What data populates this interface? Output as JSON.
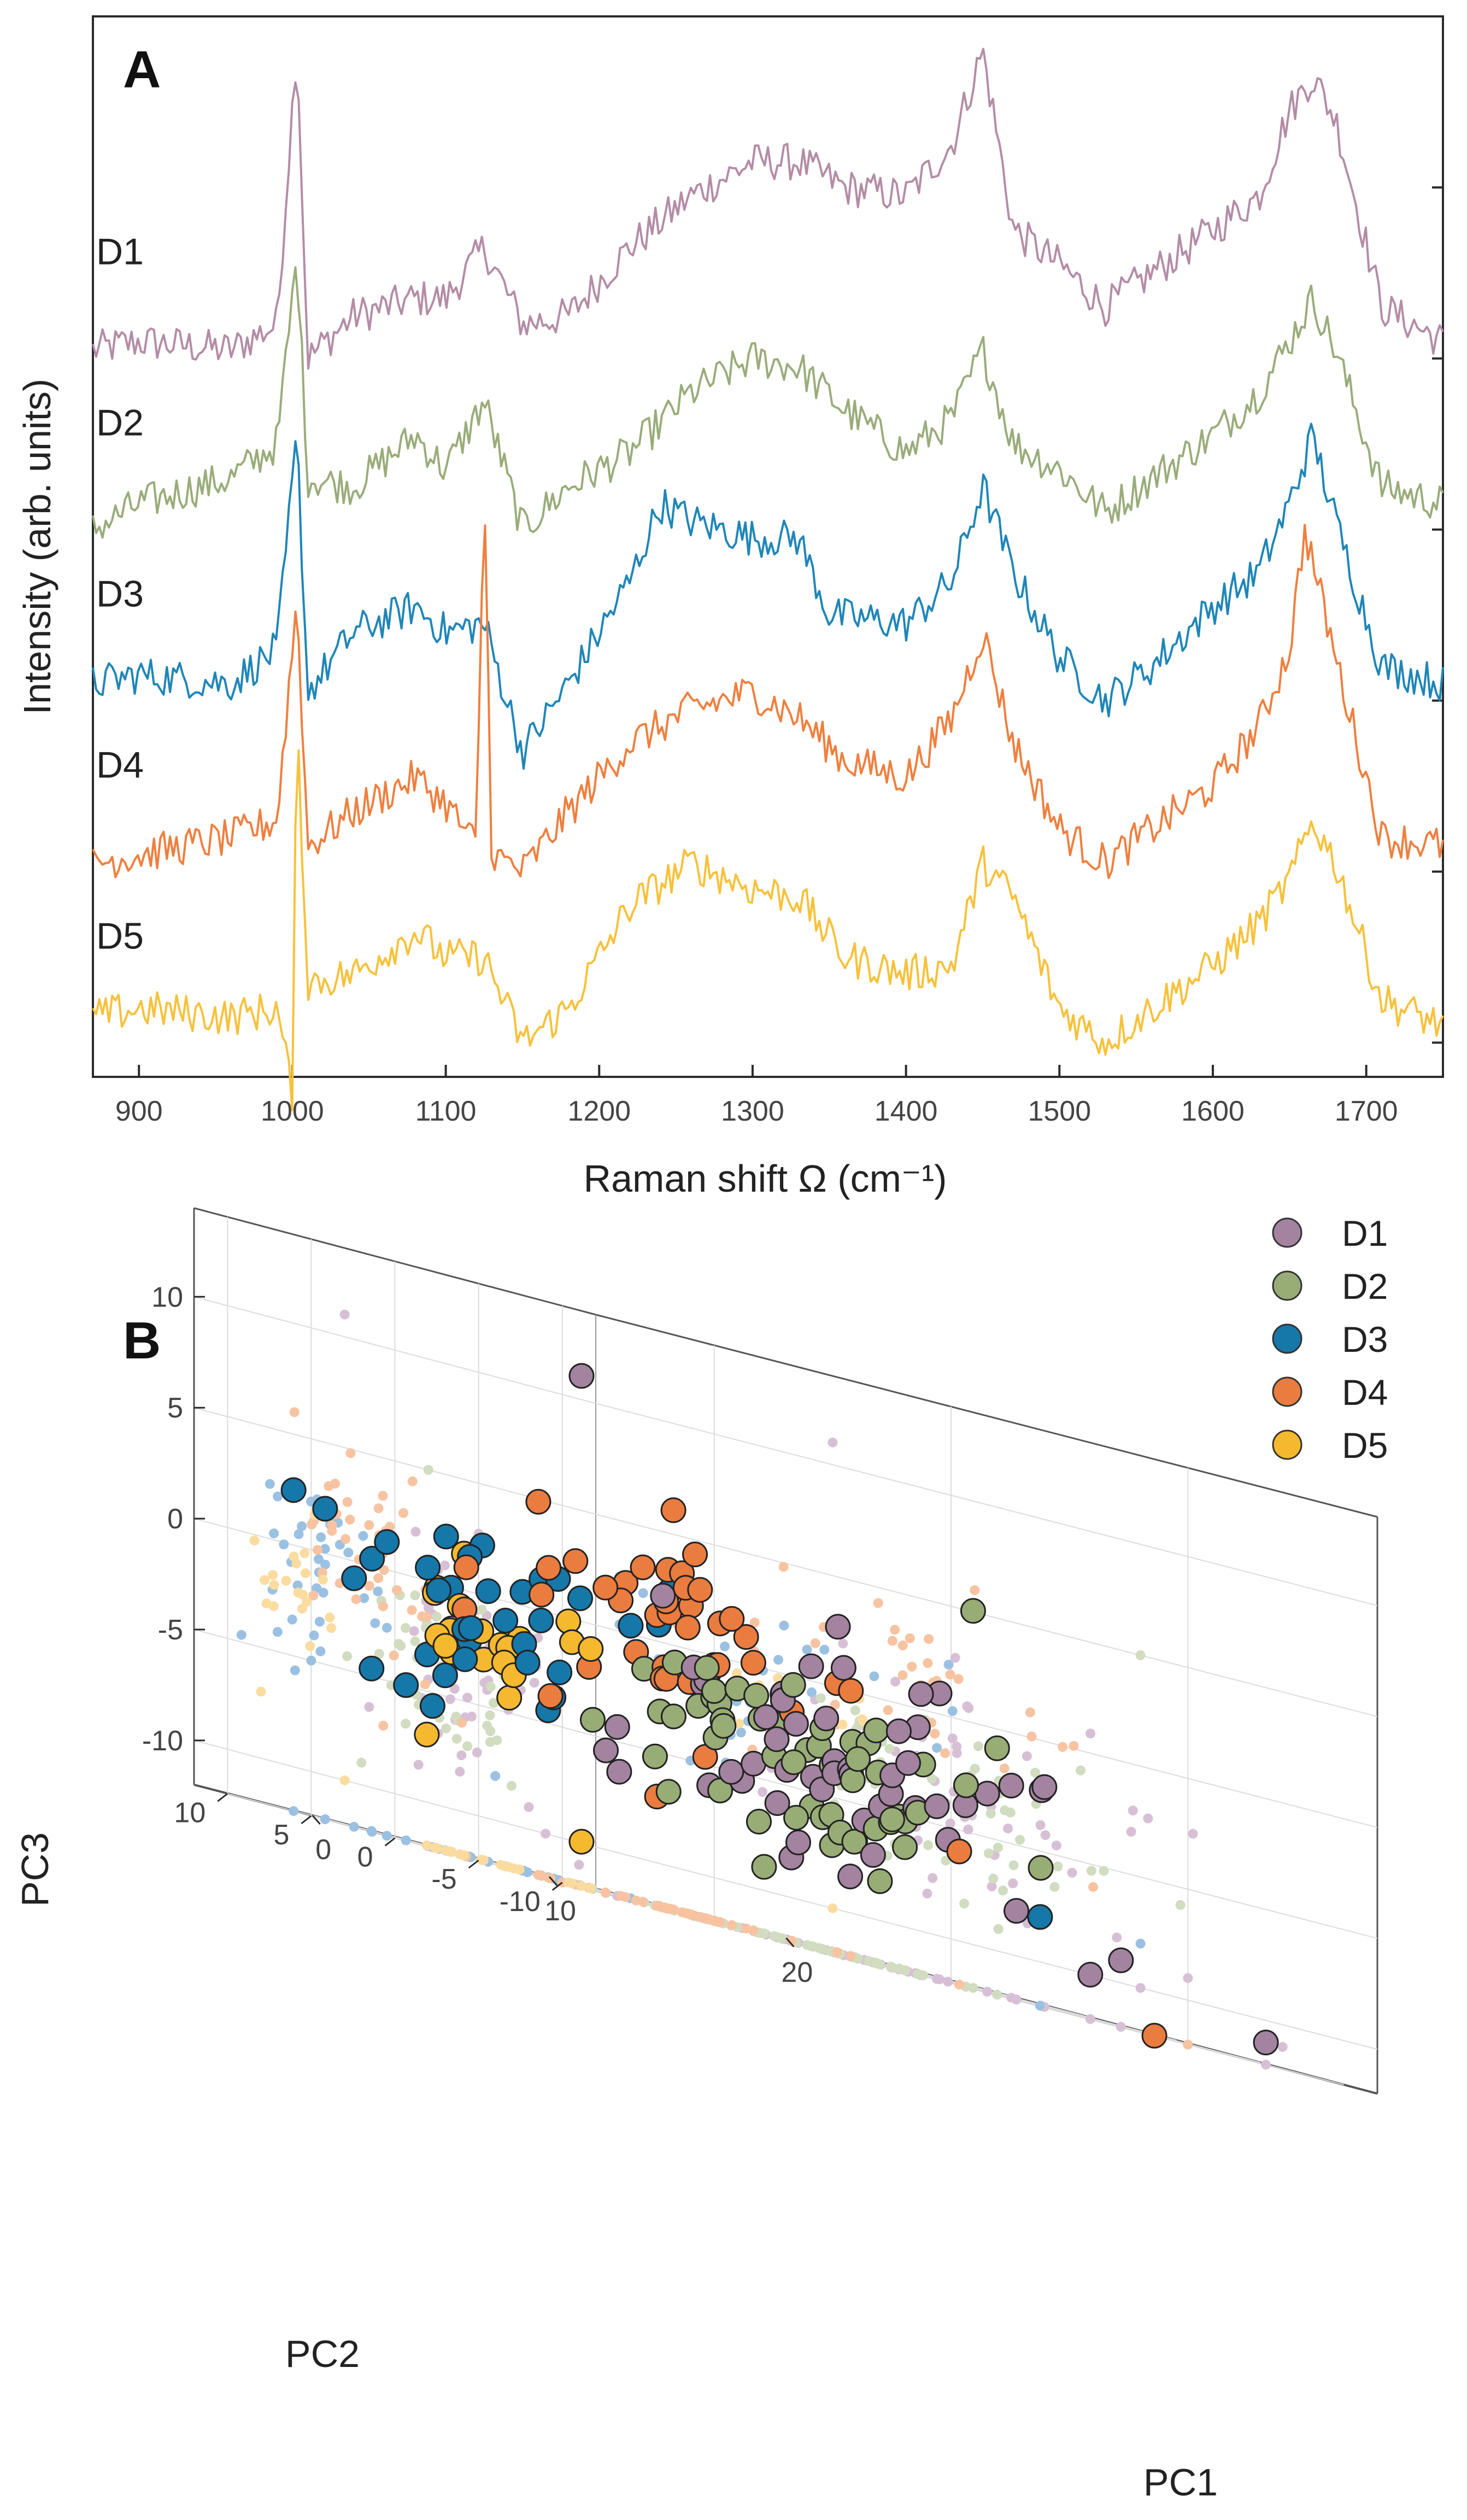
{
  "chart_data": [
    {
      "panel": "A",
      "type": "line",
      "xlabel": "Raman shift Ω (cm⁻¹)",
      "ylabel": "Intensity (arb. units)",
      "xlim": [
        870,
        1750
      ],
      "ylim": [
        0,
        6.2
      ],
      "xticks": [
        900,
        1000,
        1100,
        1200,
        1300,
        1400,
        1500,
        1600,
        1700
      ],
      "stacked_offset": 1.0,
      "grid": false,
      "peaks_cm1": [
        1003,
        1125,
        1250,
        1320,
        1450,
        1660
      ],
      "series": [
        {
          "name": "D1",
          "color": "#b48ca6",
          "offset": 4.2,
          "x": [
            870,
            900,
            960,
            990,
            1003,
            1010,
            1040,
            1080,
            1100,
            1125,
            1150,
            1180,
            1220,
            1260,
            1300,
            1330,
            1360,
            1400,
            1430,
            1450,
            1470,
            1500,
            1530,
            1560,
            1600,
            1630,
            1650,
            1665,
            1680,
            1710,
            1750
          ],
          "y": [
            0.05,
            0.1,
            0.05,
            0.2,
            1.85,
            0.0,
            0.25,
            0.35,
            0.35,
            0.65,
            0.2,
            0.25,
            0.65,
            0.95,
            1.15,
            1.15,
            1.0,
            0.95,
            1.25,
            1.8,
            0.75,
            0.55,
            0.3,
            0.5,
            0.75,
            0.95,
            1.45,
            1.65,
            1.4,
            0.3,
            0.1
          ]
        },
        {
          "name": "D2",
          "color": "#9aac7a",
          "offset": 3.2,
          "x": [
            870,
            900,
            960,
            990,
            1003,
            1010,
            1040,
            1080,
            1100,
            1125,
            1150,
            1180,
            1220,
            1260,
            1300,
            1330,
            1360,
            1400,
            1430,
            1450,
            1470,
            1500,
            1530,
            1560,
            1600,
            1630,
            1650,
            1665,
            1680,
            1710,
            1750
          ],
          "y": [
            0.0,
            0.15,
            0.3,
            0.5,
            1.6,
            0.3,
            0.25,
            0.55,
            0.35,
            0.75,
            0.0,
            0.25,
            0.45,
            0.8,
            1.0,
            0.95,
            0.7,
            0.45,
            0.65,
            1.05,
            0.5,
            0.35,
            0.1,
            0.3,
            0.55,
            0.8,
            1.1,
            1.35,
            1.05,
            0.25,
            0.15
          ]
        },
        {
          "name": "D3",
          "color": "#1f86b8",
          "offset": 2.2,
          "x": [
            870,
            900,
            960,
            990,
            1003,
            1010,
            1040,
            1080,
            1100,
            1125,
            1150,
            1180,
            1220,
            1240,
            1260,
            1300,
            1330,
            1350,
            1400,
            1430,
            1450,
            1470,
            1500,
            1530,
            1560,
            1600,
            1630,
            1650,
            1665,
            1680,
            1710,
            1750
          ],
          "y": [
            0.1,
            0.15,
            0.1,
            0.3,
            1.55,
            0.05,
            0.4,
            0.55,
            0.4,
            0.45,
            -0.3,
            0.1,
            0.7,
            1.15,
            1.05,
            0.95,
            0.95,
            0.5,
            0.45,
            0.7,
            1.25,
            0.75,
            0.25,
            0.0,
            0.2,
            0.55,
            0.75,
            1.15,
            1.55,
            1.05,
            0.2,
            0.1
          ]
        },
        {
          "name": "D4",
          "color": "#ef7f3e",
          "offset": 1.2,
          "x": [
            870,
            900,
            960,
            990,
            1003,
            1010,
            1040,
            1080,
            1100,
            1120,
            1125,
            1130,
            1150,
            1180,
            1220,
            1260,
            1300,
            1330,
            1360,
            1400,
            1430,
            1450,
            1470,
            1500,
            1530,
            1560,
            1600,
            1630,
            1650,
            1660,
            1680,
            1710,
            1750
          ],
          "y": [
            0.05,
            0.1,
            0.2,
            0.3,
            1.6,
            0.15,
            0.35,
            0.55,
            0.4,
            0.15,
            2.3,
            0.1,
            0.0,
            0.35,
            0.75,
            0.95,
            1.05,
            0.9,
            0.65,
            0.55,
            0.9,
            1.4,
            0.75,
            0.25,
            0.05,
            0.25,
            0.5,
            0.85,
            1.3,
            2.0,
            1.25,
            0.2,
            0.15
          ]
        },
        {
          "name": "D5",
          "color": "#f8c13a",
          "offset": 0.2,
          "x": [
            870,
            900,
            960,
            990,
            1000,
            1003,
            1010,
            1040,
            1080,
            1100,
            1125,
            1150,
            1180,
            1220,
            1260,
            1300,
            1330,
            1360,
            1400,
            1430,
            1450,
            1470,
            1500,
            1530,
            1560,
            1600,
            1630,
            1650,
            1665,
            1680,
            1710,
            1750
          ],
          "y": [
            0.15,
            0.2,
            0.15,
            0.2,
            -0.3,
            1.9,
            0.35,
            0.4,
            0.65,
            0.5,
            0.5,
            0.0,
            0.2,
            0.8,
            1.05,
            0.9,
            0.85,
            0.5,
            0.4,
            0.45,
            1.05,
            0.85,
            0.2,
            0.0,
            0.2,
            0.45,
            0.7,
            0.95,
            1.3,
            1.05,
            0.25,
            0.1
          ]
        }
      ],
      "series_labels": [
        "D1",
        "D2",
        "D3",
        "D4",
        "D5"
      ]
    },
    {
      "panel": "B",
      "type": "scatter3d",
      "xlabel": "PC1",
      "ylabel": "PC2",
      "zlabel": "PC3",
      "xlim": [
        -5,
        28
      ],
      "ylim": [
        -12,
        12
      ],
      "zlim": [
        -12,
        14
      ],
      "xticks": [
        0,
        10,
        20
      ],
      "yticks": [
        -10,
        -5,
        0,
        5,
        10
      ],
      "zticks": [
        -10,
        -5,
        0,
        5,
        10
      ],
      "grid": true,
      "legend": {
        "position": "top-right",
        "entries": [
          "D1",
          "D2",
          "D3",
          "D4",
          "D5"
        ]
      },
      "projections": [
        "PC2-PC3 wall",
        "PC1-PC3 wall",
        "PC1-PC2 floor"
      ],
      "series": [
        {
          "name": "D1",
          "color": "#a383a0",
          "shadow_color": "#d7c0d5",
          "pc1_mean": 10.0,
          "pc2_mean": -4.0,
          "pc3_mean": -4.0,
          "pc1_sd": 4.0,
          "pc2_sd": 2.5,
          "pc3_sd": 2.5,
          "count": 50,
          "outliers": [
            [
              5,
              3,
              11
            ],
            [
              17,
              -6,
              -8
            ],
            [
              20,
              -8,
              -9
            ],
            [
              18,
              -9,
              -10
            ],
            [
              24,
              -11,
              -11
            ]
          ]
        },
        {
          "name": "D2",
          "color": "#98ad76",
          "shadow_color": "#d1dcc0",
          "pc1_mean": 10.0,
          "pc2_mean": -3.0,
          "pc3_mean": -4.0,
          "pc1_sd": 3.5,
          "pc2_sd": 2.3,
          "pc3_sd": 2.0,
          "count": 55,
          "outliers": [
            [
              18,
              -2,
              5
            ],
            [
              12,
              2,
              -9
            ]
          ]
        },
        {
          "name": "D3",
          "color": "#1677a9",
          "shadow_color": "#9bc1e2",
          "pc1_mean": 3.0,
          "pc2_mean": 5.0,
          "pc3_mean": -1.0,
          "pc1_sd": 3.0,
          "pc2_sd": 2.0,
          "pc3_sd": 2.5,
          "count": 35,
          "outliers": [
            [
              -3,
              7,
              2
            ],
            [
              18,
              -6,
              -8
            ],
            [
              -1,
              5,
              -5
            ]
          ]
        },
        {
          "name": "D4",
          "color": "#ea7c3f",
          "shadow_color": "#f7c3a1",
          "pc1_mean": 8.0,
          "pc2_mean": 1.5,
          "pc3_mean": 0.0,
          "pc1_sd": 3.5,
          "pc2_sd": 2.5,
          "pc3_sd": 2.5,
          "count": 40,
          "outliers": [
            [
              11,
              6,
              6
            ],
            [
              16,
              -4,
              -6
            ],
            [
              20,
              -10,
              -12
            ]
          ]
        },
        {
          "name": "D5",
          "color": "#f5b930",
          "shadow_color": "#fbdca0",
          "pc1_mean": 3.0,
          "pc2_mean": 6.0,
          "pc3_mean": -1.0,
          "pc1_sd": 2.0,
          "pc2_sd": 1.5,
          "pc3_sd": 1.5,
          "count": 20,
          "outliers": [
            [
              2,
              8,
              -7
            ],
            [
              5,
              3,
              -10
            ]
          ]
        }
      ]
    }
  ]
}
